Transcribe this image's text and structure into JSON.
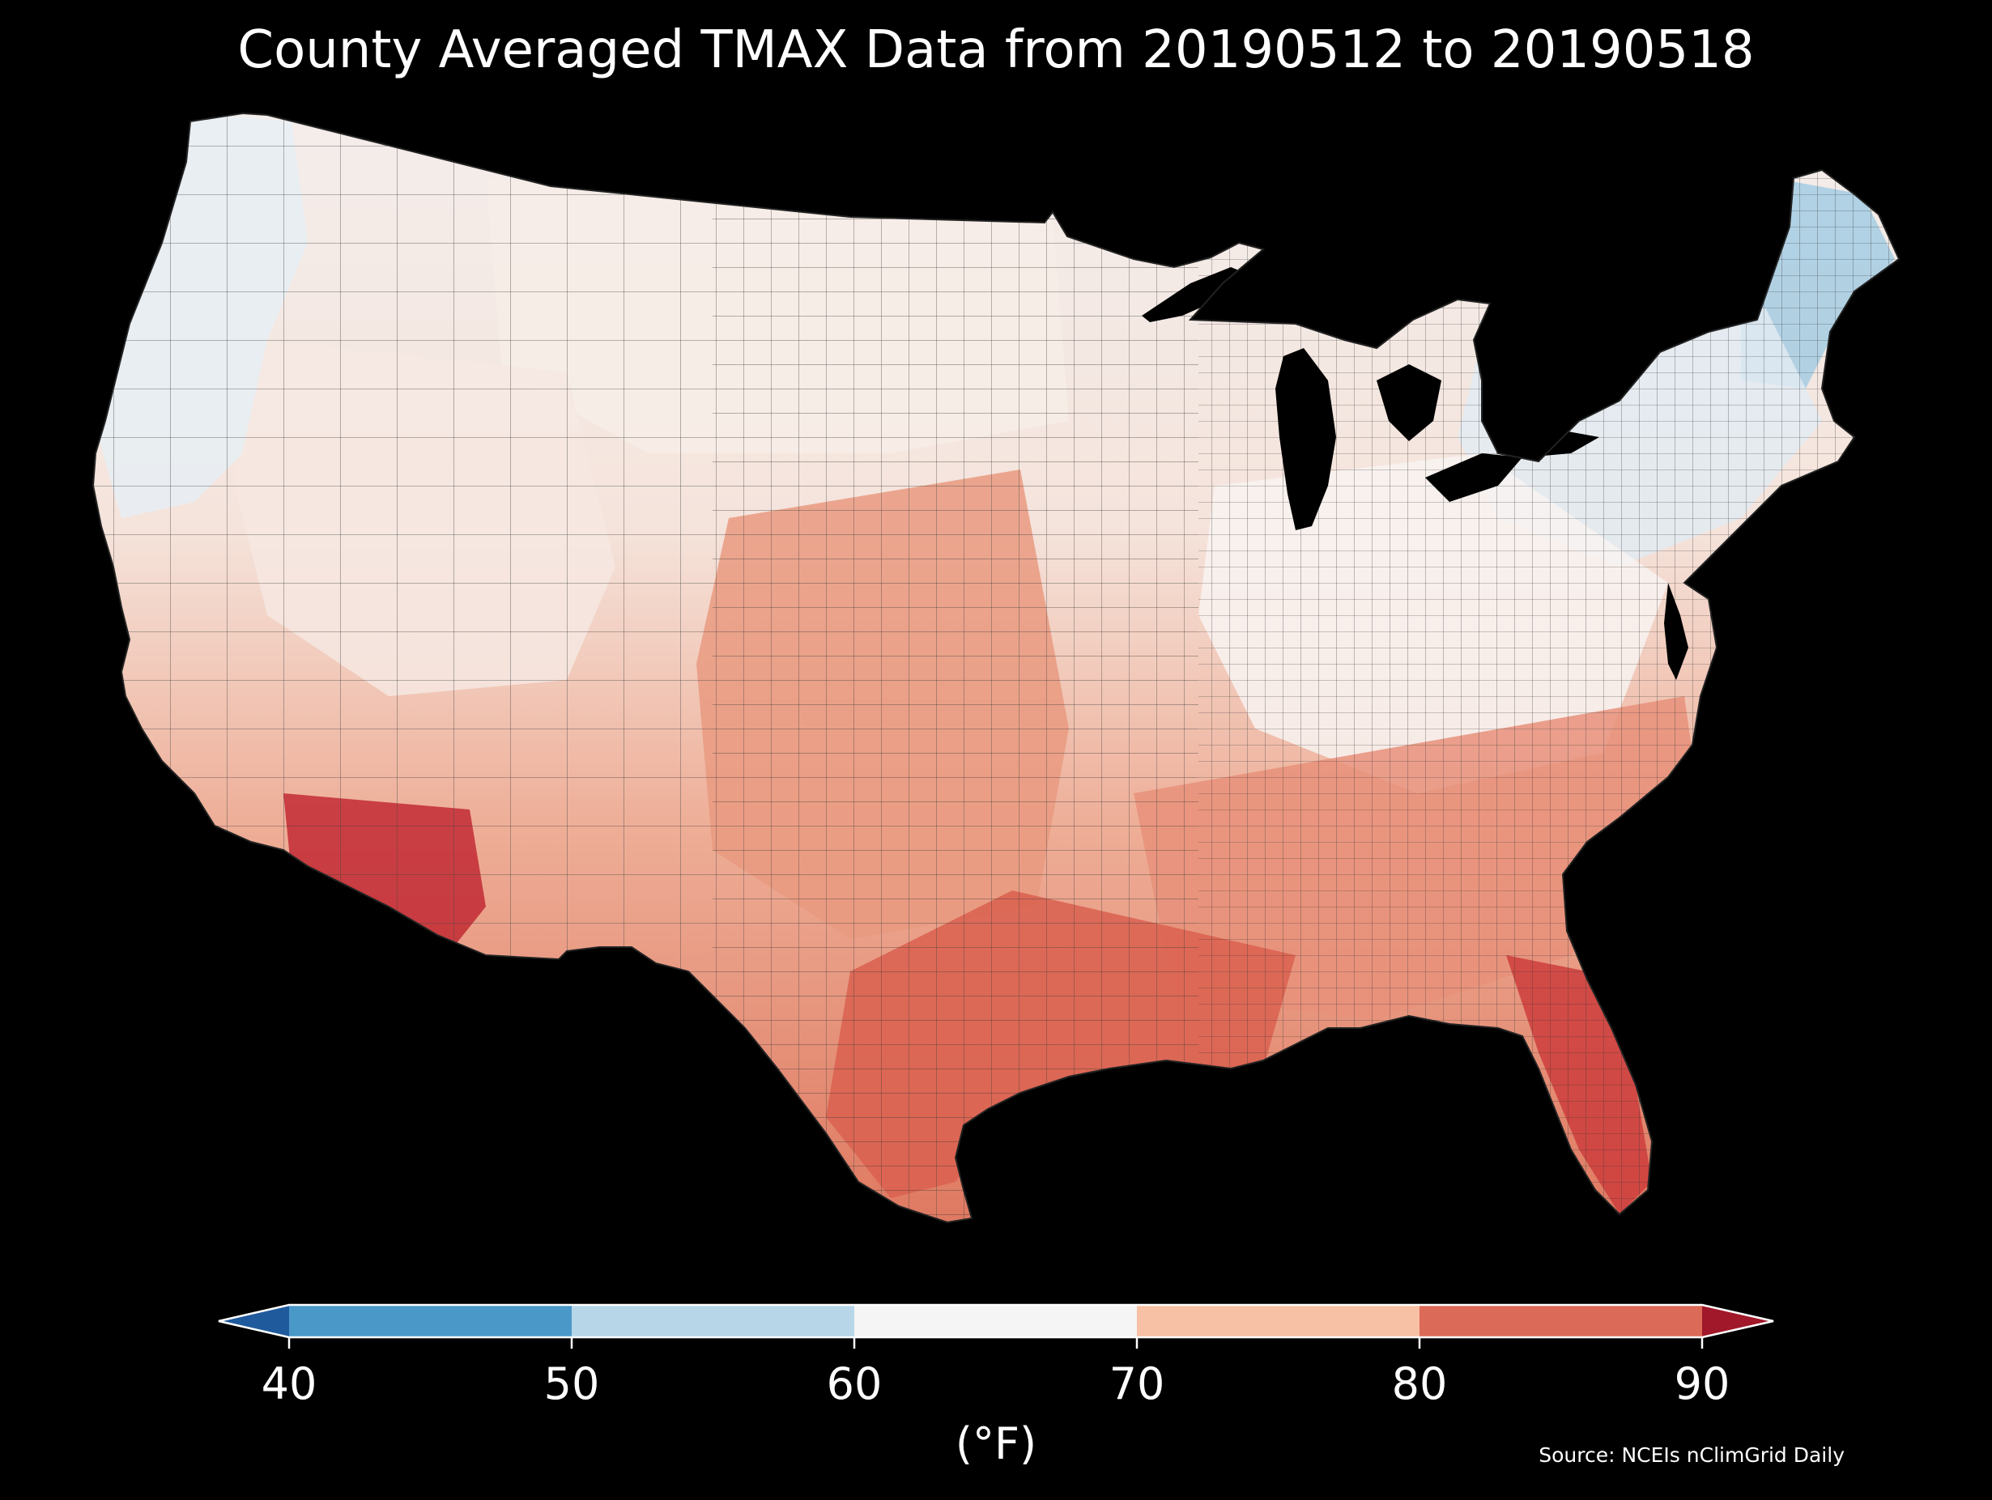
{
  "title": "County Averaged TMAX Data from 20190512 to 20190518",
  "source": "Source: NCEIs nClimGrid Daily",
  "colorbar": {
    "unit": "(°F)",
    "ticks": [
      "40",
      "50",
      "60",
      "70",
      "80",
      "90"
    ],
    "bins": [
      {
        "low": 40,
        "high": 50,
        "color": "#4a98c8"
      },
      {
        "low": 50,
        "high": 60,
        "color": "#b7d7e9"
      },
      {
        "low": 60,
        "high": 70,
        "color": "#f5f5f5"
      },
      {
        "low": 70,
        "high": 80,
        "color": "#f7c1a6"
      },
      {
        "low": 80,
        "high": 90,
        "color": "#dc6a58"
      }
    ],
    "under_color": "#1f5a9c",
    "over_color": "#a01829",
    "extend": "both"
  },
  "map": {
    "background": "#000000",
    "regions": [
      {
        "name": "pacific-northwest",
        "tmax_band": "50-60",
        "color": "#e6eff5"
      },
      {
        "name": "northern-plains",
        "tmax_band": "60-70",
        "color": "#f7ede8"
      },
      {
        "name": "great-basin",
        "tmax_band": "60-70",
        "color": "#f6e8e2"
      },
      {
        "name": "new-england",
        "tmax_band": "50-60",
        "color": "#a5cde3"
      },
      {
        "name": "northeast",
        "tmax_band": "60-70",
        "color": "#e2ebf2"
      },
      {
        "name": "ohio-valley",
        "tmax_band": "60-70",
        "color": "#f8f3f1"
      },
      {
        "name": "southern-plains",
        "tmax_band": "70-80",
        "color": "#e99a80"
      },
      {
        "name": "southeast",
        "tmax_band": "70-80",
        "color": "#e8907a"
      },
      {
        "name": "gulf-coast",
        "tmax_band": "80-90",
        "color": "#d9604f"
      },
      {
        "name": "florida",
        "tmax_band": "80-90",
        "color": "#cd3d3c"
      },
      {
        "name": "desert-southwest",
        "tmax_band": "80-90",
        "color": "#c22a34"
      }
    ]
  }
}
